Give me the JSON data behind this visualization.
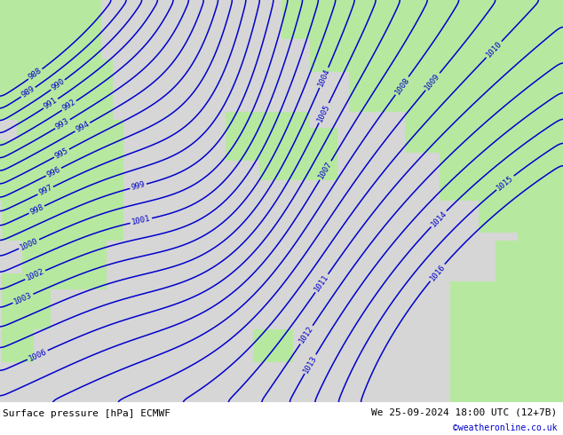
{
  "title_left": "Surface pressure [hPa] ECMWF",
  "title_right": "We 25-09-2024 18:00 UTC (12+7B)",
  "watermark": "©weatheronline.co.uk",
  "land_color": [
    0.72,
    0.91,
    0.63
  ],
  "sea_color": [
    0.84,
    0.84,
    0.84
  ],
  "contour_color": "#0000cc",
  "contour_linewidth": 1.1,
  "label_fontsize": 6.5,
  "footer_fontsize": 8,
  "pressure_levels": [
    988,
    989,
    990,
    991,
    992,
    993,
    994,
    995,
    996,
    997,
    998,
    999,
    1000,
    1001,
    1002,
    1003,
    1004,
    1005,
    1006,
    1007,
    1008,
    1009,
    1010,
    1011,
    1012,
    1013,
    1014,
    1015,
    1016
  ],
  "figsize": [
    6.34,
    4.9
  ],
  "dpi": 100
}
